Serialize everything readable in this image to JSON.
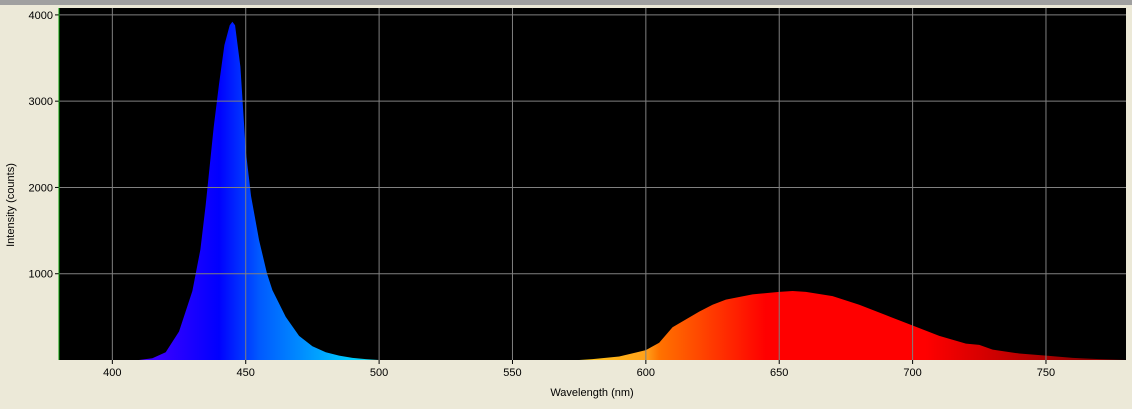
{
  "chart_data": {
    "type": "area",
    "xlabel": "Wavelength (nm)",
    "ylabel": "Intensity (counts)",
    "x": [
      410,
      415,
      420,
      425,
      430,
      433,
      435,
      438,
      440,
      442,
      444,
      445,
      446,
      448,
      450,
      452,
      455,
      458,
      460,
      465,
      470,
      475,
      480,
      485,
      490,
      495,
      500,
      550,
      575,
      580,
      590,
      600,
      605,
      610,
      620,
      625,
      630,
      640,
      650,
      655,
      660,
      670,
      680,
      690,
      700,
      710,
      720,
      725,
      730,
      740,
      750,
      760,
      770,
      780
    ],
    "values": [
      0,
      20,
      90,
      330,
      800,
      1280,
      1800,
      2700,
      3200,
      3650,
      3880,
      3920,
      3880,
      3400,
      2430,
      1900,
      1390,
      1000,
      810,
      500,
      280,
      160,
      90,
      50,
      25,
      10,
      0,
      0,
      0,
      10,
      40,
      115,
      200,
      380,
      560,
      640,
      700,
      760,
      790,
      800,
      790,
      740,
      640,
      520,
      400,
      280,
      190,
      175,
      120,
      75,
      50,
      25,
      10,
      0
    ],
    "xlim": [
      380,
      780
    ],
    "xticks": [
      400,
      450,
      500,
      550,
      600,
      650,
      700,
      750
    ],
    "ylim": [
      0,
      4080
    ],
    "yticks": [
      1000,
      2000,
      3000,
      4000
    ],
    "grid": true
  }
}
